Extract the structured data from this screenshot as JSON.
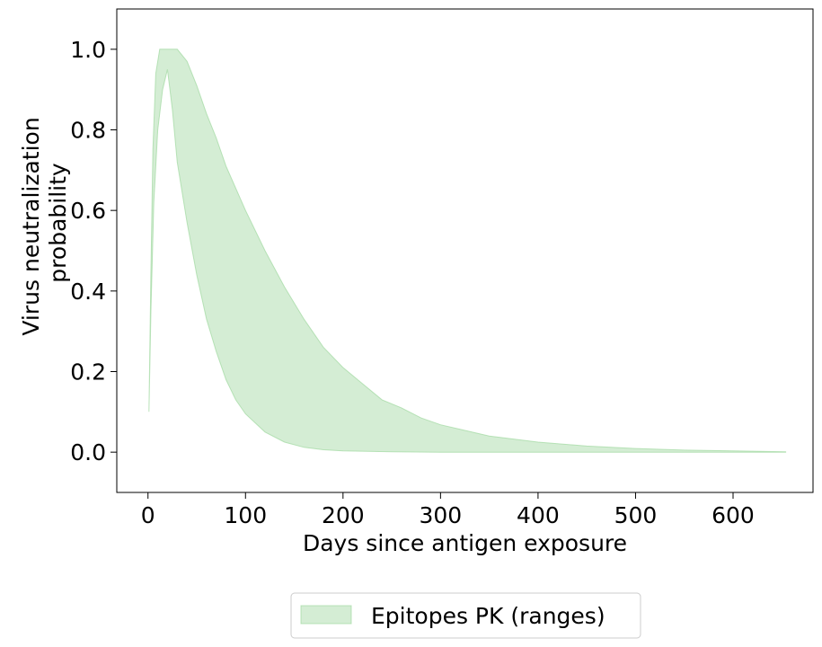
{
  "chart_data": {
    "type": "area",
    "title": "",
    "xlabel": "Days since antigen exposure",
    "ylabel_lines": [
      "Virus neutralization",
      "probability"
    ],
    "xlim": [
      -32,
      682
    ],
    "ylim": [
      -0.1,
      1.1
    ],
    "xticks": [
      0,
      100,
      200,
      300,
      400,
      500,
      600
    ],
    "xtick_labels": [
      "0",
      "100",
      "200",
      "300",
      "400",
      "500",
      "600"
    ],
    "yticks": [
      0.0,
      0.2,
      0.4,
      0.6,
      0.8,
      1.0
    ],
    "ytick_labels": [
      "0.0",
      "0.2",
      "0.4",
      "0.6",
      "0.8",
      "1.0"
    ],
    "grid": false,
    "legend_position": "below",
    "series": [
      {
        "name": "Epitopes PK (ranges)",
        "color": "#9fd89f",
        "upper": [
          [
            1,
            0.1
          ],
          [
            3,
            0.45
          ],
          [
            5,
            0.75
          ],
          [
            8,
            0.94
          ],
          [
            12,
            1.0
          ],
          [
            20,
            1.0
          ],
          [
            30,
            1.0
          ],
          [
            40,
            0.97
          ],
          [
            50,
            0.91
          ],
          [
            60,
            0.84
          ],
          [
            70,
            0.78
          ],
          [
            80,
            0.71
          ],
          [
            100,
            0.6
          ],
          [
            120,
            0.5
          ],
          [
            140,
            0.41
          ],
          [
            160,
            0.33
          ],
          [
            180,
            0.26
          ],
          [
            200,
            0.21
          ],
          [
            220,
            0.17
          ],
          [
            240,
            0.13
          ],
          [
            260,
            0.11
          ],
          [
            280,
            0.085
          ],
          [
            300,
            0.068
          ],
          [
            350,
            0.04
          ],
          [
            400,
            0.025
          ],
          [
            450,
            0.015
          ],
          [
            500,
            0.009
          ],
          [
            550,
            0.005
          ],
          [
            600,
            0.003
          ],
          [
            654,
            0.001
          ]
        ],
        "lower": [
          [
            1,
            0.1
          ],
          [
            3,
            0.35
          ],
          [
            6,
            0.62
          ],
          [
            10,
            0.8
          ],
          [
            15,
            0.9
          ],
          [
            20,
            0.95
          ],
          [
            25,
            0.85
          ],
          [
            30,
            0.72
          ],
          [
            40,
            0.57
          ],
          [
            50,
            0.44
          ],
          [
            60,
            0.33
          ],
          [
            70,
            0.25
          ],
          [
            80,
            0.18
          ],
          [
            90,
            0.13
          ],
          [
            100,
            0.095
          ],
          [
            120,
            0.05
          ],
          [
            140,
            0.025
          ],
          [
            160,
            0.012
          ],
          [
            180,
            0.006
          ],
          [
            200,
            0.003
          ],
          [
            250,
            0.001
          ],
          [
            300,
            0.0
          ],
          [
            654,
            0.0
          ]
        ]
      }
    ]
  }
}
